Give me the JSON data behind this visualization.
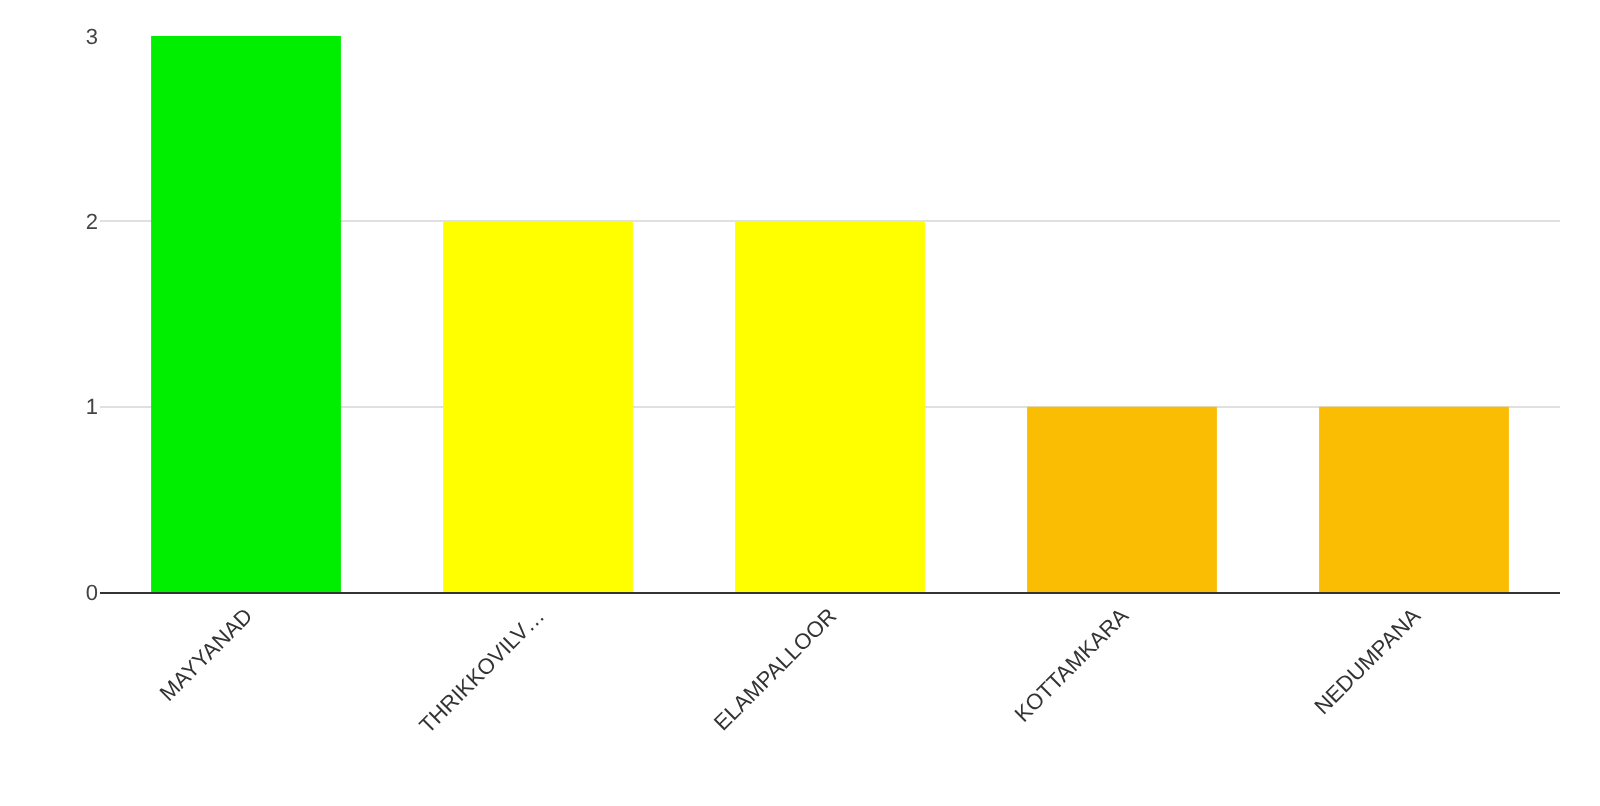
{
  "chart_data": {
    "type": "bar",
    "categories": [
      "MAYYANAD",
      "THRIKKOVILV…",
      "ELAMPALLOOR",
      "KOTTAMKARA",
      "NEDUMPANA"
    ],
    "values": [
      3,
      2,
      2,
      1,
      1
    ],
    "colors": [
      "#00ee00",
      "#ffff00",
      "#ffff00",
      "#fbbc04",
      "#fbbc04"
    ],
    "ylim": [
      0,
      3
    ],
    "yticks": [
      0,
      1,
      2,
      3
    ],
    "grid": "y"
  }
}
